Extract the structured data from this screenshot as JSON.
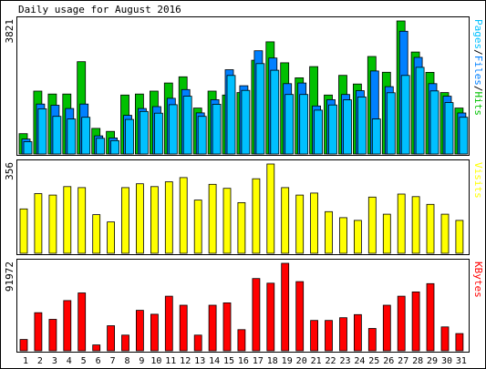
{
  "title": "Daily usage for August 2016",
  "chart_data": [
    {
      "type": "bar",
      "name": "hits-pages-files",
      "categories": [
        "1",
        "2",
        "3",
        "4",
        "5",
        "6",
        "7",
        "8",
        "9",
        "10",
        "11",
        "12",
        "13",
        "14",
        "15",
        "16",
        "17",
        "18",
        "19",
        "20",
        "21",
        "22",
        "23",
        "24",
        "25",
        "26",
        "27",
        "28",
        "29",
        "30",
        "31"
      ],
      "ymax_label": "3821",
      "ylim": [
        0,
        3821
      ],
      "legend": {
        "parts": [
          {
            "text": "Pages",
            "color": "#00c0ff"
          },
          {
            "text": "/",
            "color": "#000000"
          },
          {
            "text": "Files",
            "color": "#0080ff"
          },
          {
            "text": "/",
            "color": "#000000"
          },
          {
            "text": "Hits",
            "color": "#00c000"
          }
        ]
      },
      "series": [
        {
          "name": "Hits",
          "color": "#00c000",
          "values": [
            584,
            1806,
            1722,
            1722,
            2651,
            736,
            650,
            1694,
            1722,
            1806,
            2039,
            2217,
            1318,
            1806,
            1694,
            1764,
            2693,
            3222,
            2619,
            2189,
            2511,
            1694,
            2259,
            2011,
            2801,
            2347,
            3821,
            2928,
            2346,
            1764,
            1318
          ]
        },
        {
          "name": "Files",
          "color": "#0080ff",
          "values": [
            430,
            1435,
            1400,
            1306,
            1435,
            520,
            460,
            1110,
            1306,
            1362,
            1600,
            1850,
            1180,
            1560,
            2421,
            1960,
            2964,
            2756,
            2020,
            2040,
            1378,
            1560,
            1710,
            1820,
            2383,
            1934,
            3524,
            2774,
            2020,
            1660,
            1178
          ]
        },
        {
          "name": "Pages",
          "color": "#00c0ff",
          "values": [
            353,
            1298,
            1082,
            1006,
            1054,
            450,
            385,
            992,
            1222,
            1172,
            1415,
            1658,
            1082,
            1430,
            2256,
            1828,
            2596,
            2404,
            1710,
            1710,
            1258,
            1408,
            1554,
            1638,
            1006,
            1758,
            2256,
            2489,
            1812,
            1476,
            1054
          ]
        }
      ]
    },
    {
      "type": "bar",
      "name": "visits",
      "categories": [
        "1",
        "2",
        "3",
        "4",
        "5",
        "6",
        "7",
        "8",
        "9",
        "10",
        "11",
        "12",
        "13",
        "14",
        "15",
        "16",
        "17",
        "18",
        "19",
        "20",
        "21",
        "22",
        "23",
        "24",
        "25",
        "26",
        "27",
        "28",
        "29",
        "30",
        "31"
      ],
      "ymax_label": "356",
      "ylim": [
        0,
        356
      ],
      "legend": {
        "parts": [
          {
            "text": "Visits",
            "color": "#ffff00"
          }
        ]
      },
      "series": [
        {
          "name": "Visits",
          "color": "#ffff00",
          "values": [
            177,
            238,
            232,
            266,
            262,
            154,
            125,
            262,
            277,
            266,
            285,
            302,
            212,
            275,
            259,
            202,
            297,
            356,
            262,
            232,
            240,
            166,
            142,
            131,
            224,
            156,
            236,
            226,
            195,
            156,
            131
          ]
        }
      ]
    },
    {
      "type": "bar",
      "name": "kbytes",
      "categories": [
        "1",
        "2",
        "3",
        "4",
        "5",
        "6",
        "7",
        "8",
        "9",
        "10",
        "11",
        "12",
        "13",
        "14",
        "15",
        "16",
        "17",
        "18",
        "19",
        "20",
        "21",
        "22",
        "23",
        "24",
        "25",
        "26",
        "27",
        "28",
        "29",
        "30",
        "31"
      ],
      "ymax_label": "91972",
      "ylim": [
        0,
        91972
      ],
      "legend": {
        "parts": [
          {
            "text": "KBytes",
            "color": "#ff0000"
          }
        ]
      },
      "series": [
        {
          "name": "KBytes",
          "color": "#ff0000",
          "values": [
            11918,
            40080,
            33094,
            52820,
            60800,
            6165,
            26305,
            16441,
            42545,
            38434,
            57343,
            47892,
            16441,
            47892,
            50350,
            22192,
            75989,
            71056,
            91972,
            72700,
            31861,
            31861,
            34739,
            38021,
            23429,
            47892,
            57343,
            61864,
            70648,
            25070,
            18085
          ]
        }
      ]
    }
  ],
  "x_label_colors": {
    "weekday": "#000000",
    "weekend": "#00a000"
  },
  "weekend_days": [
    "6",
    "7",
    "13",
    "14",
    "20",
    "21",
    "27",
    "28"
  ]
}
